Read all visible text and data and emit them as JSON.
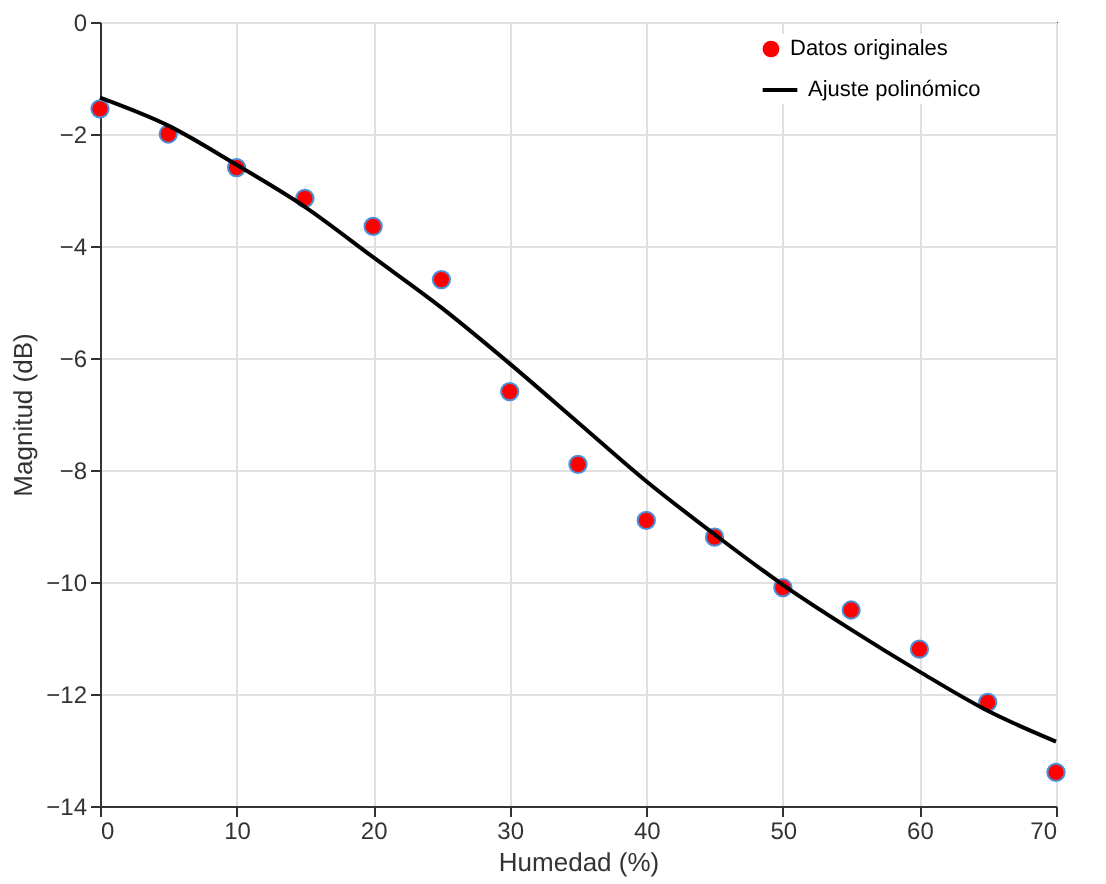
{
  "chart_data": {
    "type": "scatter",
    "xlabel": "Humedad (%)",
    "ylabel": "Magnitud (dB)",
    "xlim": [
      0,
      70
    ],
    "xticks": [
      0,
      10,
      20,
      30,
      40,
      50,
      60,
      70
    ],
    "ylim": [
      -14,
      0
    ],
    "yticks": [
      -14,
      -12,
      -10,
      -8,
      -6,
      -4,
      -2,
      0
    ],
    "grid": true,
    "legend": "top right",
    "series": [
      {
        "name": "Datos originales",
        "marker": "circle",
        "color": "#ff0000",
        "x": [
          0,
          5,
          10,
          15,
          20,
          25,
          30,
          35,
          40,
          45,
          50,
          55,
          60,
          65,
          70
        ],
        "values": [
          -1.55,
          -2.0,
          -2.6,
          -3.15,
          -3.65,
          -4.6,
          -6.6,
          -7.9,
          -8.9,
          -9.2,
          -10.1,
          -10.5,
          -11.2,
          -12.15,
          -13.4
        ]
      },
      {
        "name": "Ajuste polinómico",
        "type": "line",
        "line_style": "solid",
        "color": "#000000",
        "x": [
          0,
          5,
          10,
          15,
          20,
          25,
          30,
          35,
          40,
          45,
          50,
          55,
          60,
          65,
          70
        ],
        "values": [
          -1.35,
          -1.85,
          -2.55,
          -3.3,
          -4.2,
          -5.1,
          -6.1,
          -7.15,
          -8.2,
          -9.15,
          -10.05,
          -10.85,
          -11.6,
          -12.3,
          -12.85
        ]
      }
    ]
  }
}
